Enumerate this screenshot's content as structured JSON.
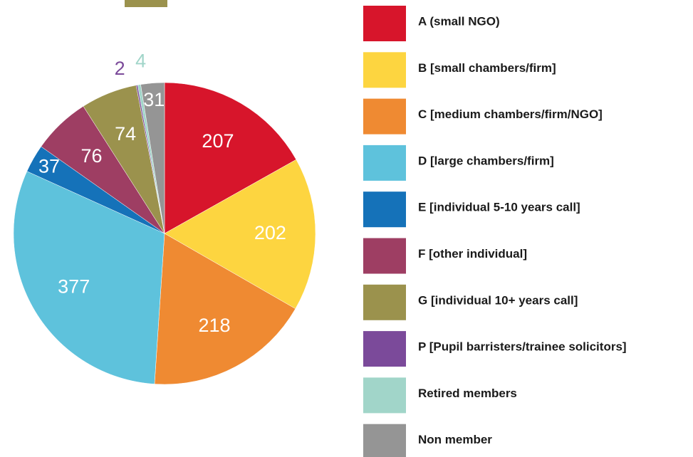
{
  "chart_data": {
    "type": "pie",
    "categories": [
      "A (small NGO)",
      "B [small chambers/firm]",
      "C [medium chambers/firm/NGO]",
      "D [large chambers/firm]",
      "E [individual 5-10 years call]",
      "F [other individual]",
      "G [individual 10+ years call]",
      "P [Pupil barristers/trainee solicitors]",
      "Retired members",
      "Non member"
    ],
    "values": [
      207,
      202,
      218,
      377,
      37,
      76,
      74,
      2,
      4,
      31
    ],
    "colors": [
      "#d7152b",
      "#fdd540",
      "#ef8a32",
      "#5ec2dc",
      "#1572b9",
      "#9e3e63",
      "#9b924d",
      "#7b4a9a",
      "#a1d5c9",
      "#959595"
    ],
    "legend": "right"
  }
}
